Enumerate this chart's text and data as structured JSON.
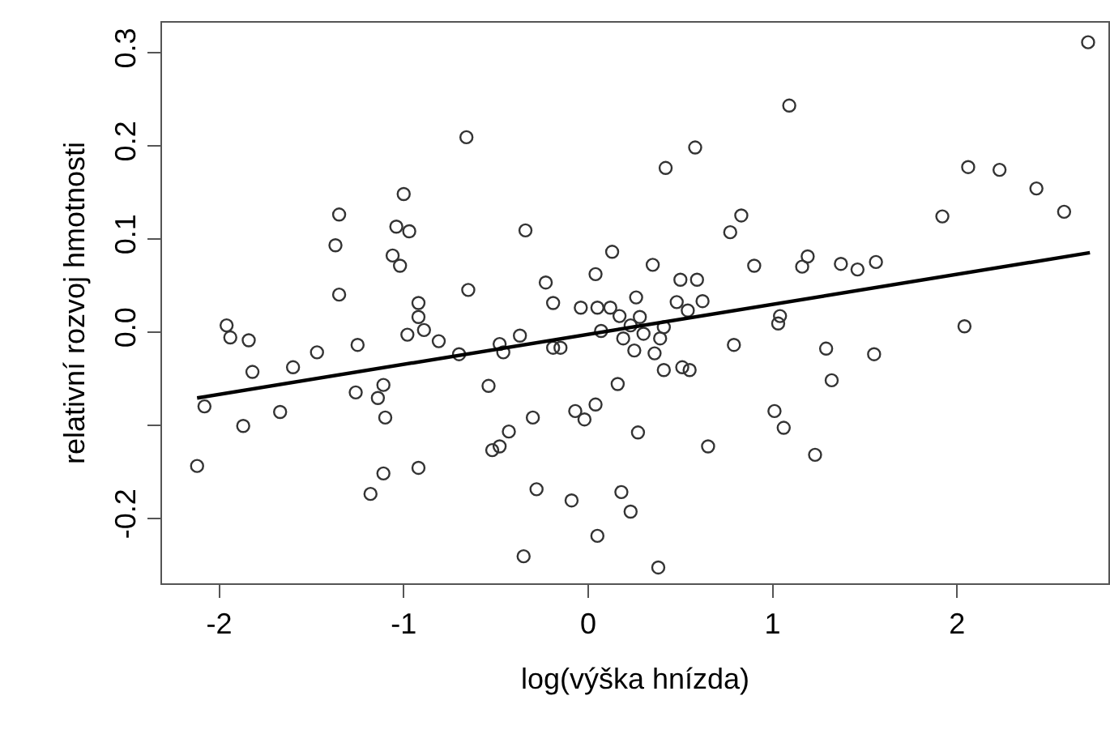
{
  "chart_data": {
    "type": "scatter",
    "xlabel": "log(výška hnízda)",
    "ylabel": "relativní rozvoj hmotnosti",
    "xlim": [
      -2.31,
      2.82
    ],
    "ylim": [
      -0.27,
      0.332
    ],
    "xticks": [
      -2,
      -1,
      0,
      1,
      2
    ],
    "yticks": [
      {
        "value": -0.2,
        "label": "-0.2"
      },
      {
        "value": -0.1,
        "label": null
      },
      {
        "value": 0,
        "label": "0.0"
      },
      {
        "value": 0.1,
        "label": "0.1"
      },
      {
        "value": 0.2,
        "label": "0.2"
      },
      {
        "value": 0.3,
        "label": "0.3"
      }
    ],
    "grid": false,
    "series": [
      {
        "marker": "circle",
        "color": "#333333",
        "x": [
          -0.66,
          -1.0,
          -1.35,
          -1.04,
          -0.97,
          -1.37,
          -1.06,
          -1.02,
          -1.35,
          -0.65,
          -0.92,
          -0.92,
          -1.96,
          -1.94,
          -1.84,
          -0.98,
          -0.89,
          -0.81,
          -1.25,
          -1.47,
          -0.7,
          -1.82,
          -1.6,
          -2.08,
          -1.26,
          -1.11,
          -1.14,
          -1.1,
          -1.67,
          -1.87,
          -2.12,
          -0.92,
          -1.11,
          -1.18,
          1.09,
          0.58,
          0.42,
          -0.34,
          0.83,
          0.77,
          0.13,
          0.9,
          0.35,
          0.04,
          -0.23,
          0.5,
          0.59,
          -0.19,
          0.26,
          0.48,
          0.62,
          -0.04,
          0.05,
          0.12,
          0.17,
          0.28,
          0.54,
          0.23,
          0.07,
          0.3,
          0.41,
          0.19,
          0.39,
          -0.37,
          -0.48,
          -0.46,
          -0.19,
          -0.15,
          0.25,
          0.36,
          0.79,
          1.04,
          1.03,
          -0.54,
          0.41,
          0.51,
          0.55,
          0.16,
          0.04,
          -0.07,
          -0.02,
          -0.3,
          -0.43,
          -0.48,
          -0.52,
          0.27,
          0.65,
          1.01,
          1.06,
          -0.28,
          -0.09,
          0.18,
          0.23,
          0.05,
          -0.35,
          0.38,
          2.71,
          2.06,
          2.23,
          2.43,
          2.58,
          1.92,
          1.19,
          1.16,
          1.37,
          1.46,
          1.56,
          2.04,
          1.29,
          1.55,
          1.32,
          1.23
        ],
        "values": [
          0.209,
          0.148,
          0.126,
          0.113,
          0.108,
          0.093,
          0.082,
          0.071,
          0.04,
          0.045,
          0.031,
          0.016,
          0.007,
          -0.006,
          -0.009,
          -0.003,
          0.002,
          -0.01,
          -0.014,
          -0.022,
          -0.024,
          -0.043,
          -0.038,
          -0.08,
          -0.065,
          -0.057,
          -0.071,
          -0.092,
          -0.086,
          -0.101,
          -0.144,
          -0.146,
          -0.152,
          -0.174,
          0.243,
          0.198,
          0.176,
          0.109,
          0.125,
          0.107,
          0.086,
          0.071,
          0.072,
          0.062,
          0.053,
          0.056,
          0.056,
          0.031,
          0.037,
          0.032,
          0.033,
          0.026,
          0.026,
          0.026,
          0.017,
          0.016,
          0.023,
          0.007,
          0.001,
          -0.002,
          0.005,
          -0.007,
          -0.007,
          -0.004,
          -0.013,
          -0.022,
          -0.017,
          -0.017,
          -0.02,
          -0.023,
          -0.014,
          0.017,
          0.009,
          -0.058,
          -0.041,
          -0.038,
          -0.041,
          -0.056,
          -0.078,
          -0.085,
          -0.094,
          -0.092,
          -0.107,
          -0.123,
          -0.127,
          -0.108,
          -0.123,
          -0.085,
          -0.103,
          -0.169,
          -0.181,
          -0.172,
          -0.193,
          -0.219,
          -0.241,
          -0.253,
          0.311,
          0.177,
          0.174,
          0.154,
          0.129,
          0.124,
          0.081,
          0.07,
          0.073,
          0.067,
          0.075,
          0.006,
          -0.018,
          -0.024,
          -0.052,
          -0.132
        ]
      },
      {
        "type": "line",
        "color": "#000000",
        "x": [
          -2.12,
          2.72
        ],
        "values": [
          -0.071,
          0.085
        ]
      }
    ]
  }
}
